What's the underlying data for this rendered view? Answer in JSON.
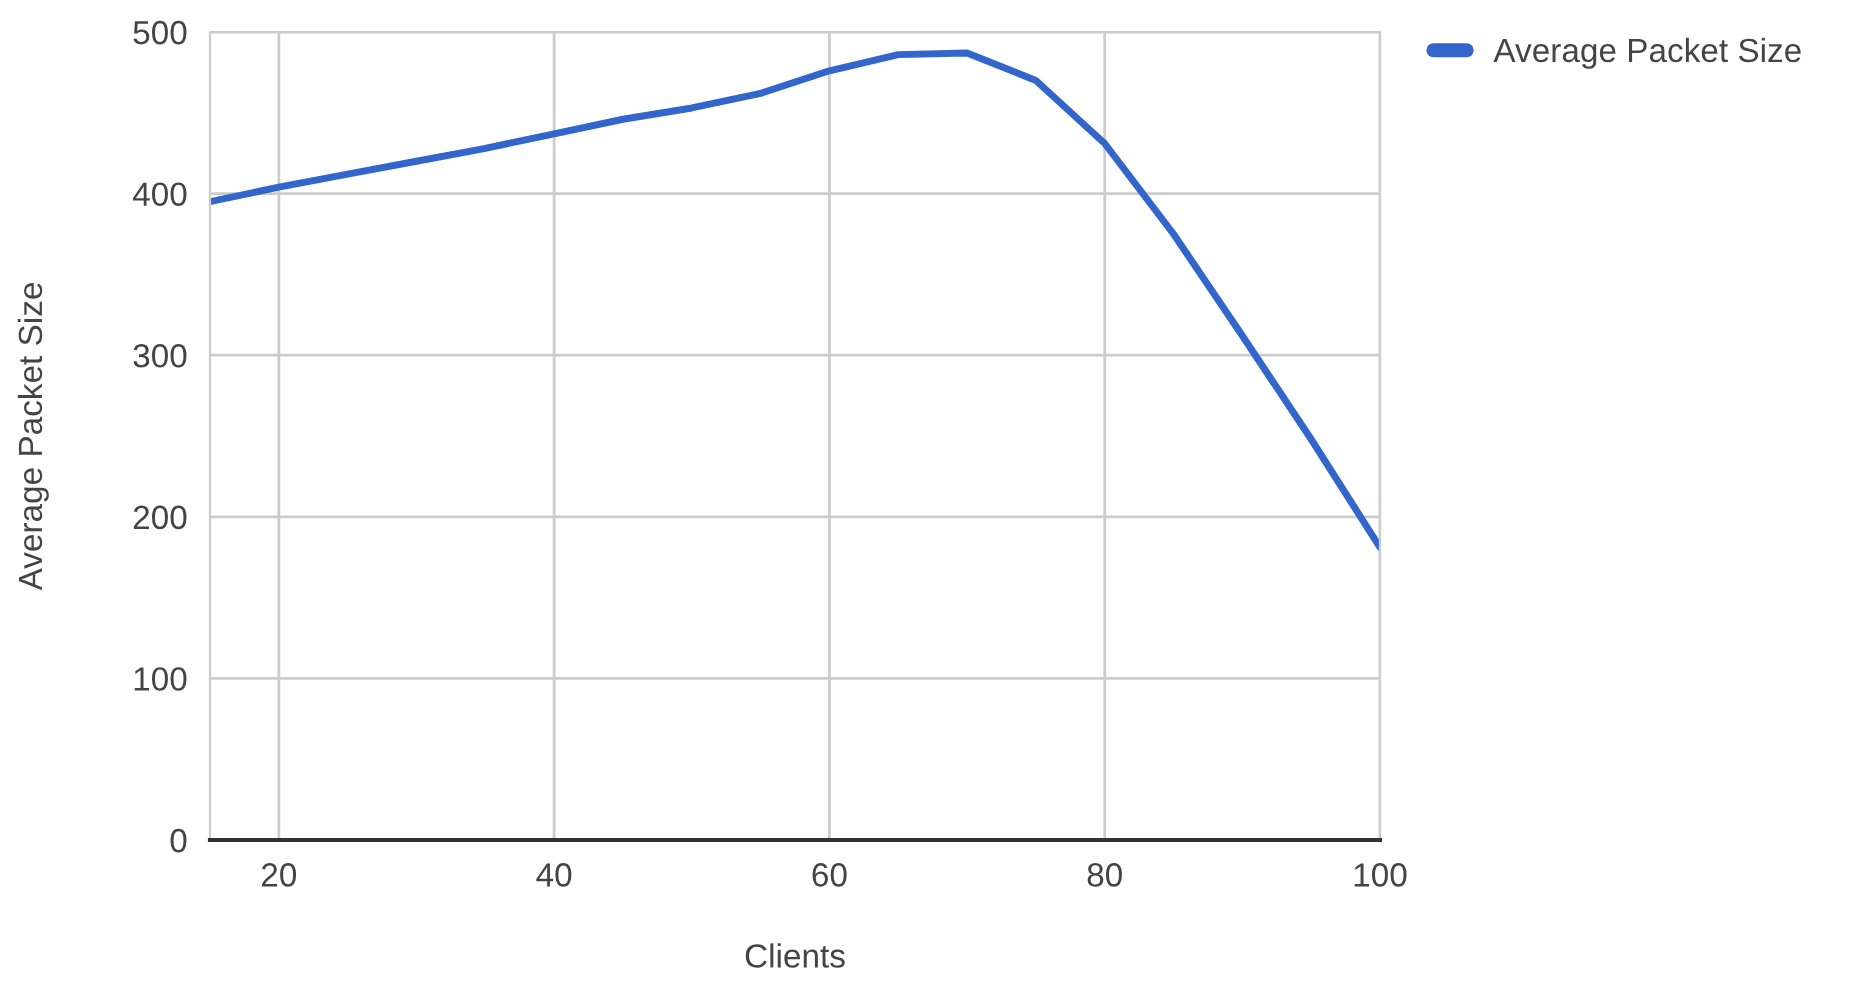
{
  "chart_data": {
    "type": "line",
    "xlabel": "Clients",
    "ylabel": "Average Packet Size",
    "series": [
      {
        "name": "Average Packet Size",
        "color": "#3366cc",
        "x": [
          15,
          20,
          25,
          30,
          35,
          40,
          45,
          50,
          55,
          60,
          65,
          70,
          75,
          80,
          85,
          90,
          95,
          100
        ],
        "values": [
          395,
          404,
          412,
          420,
          428,
          437,
          446,
          453,
          462,
          476,
          486,
          487,
          470,
          431,
          375,
          312,
          248,
          181
        ]
      }
    ],
    "xlim": [
      15,
      100
    ],
    "xticks": [
      20,
      40,
      60,
      80,
      100
    ],
    "ylim": [
      0,
      500
    ],
    "yticks": [
      0,
      100,
      200,
      300,
      400,
      500
    ],
    "grid": true,
    "legend": "top right",
    "marker": "none",
    "line_style": "solid"
  }
}
